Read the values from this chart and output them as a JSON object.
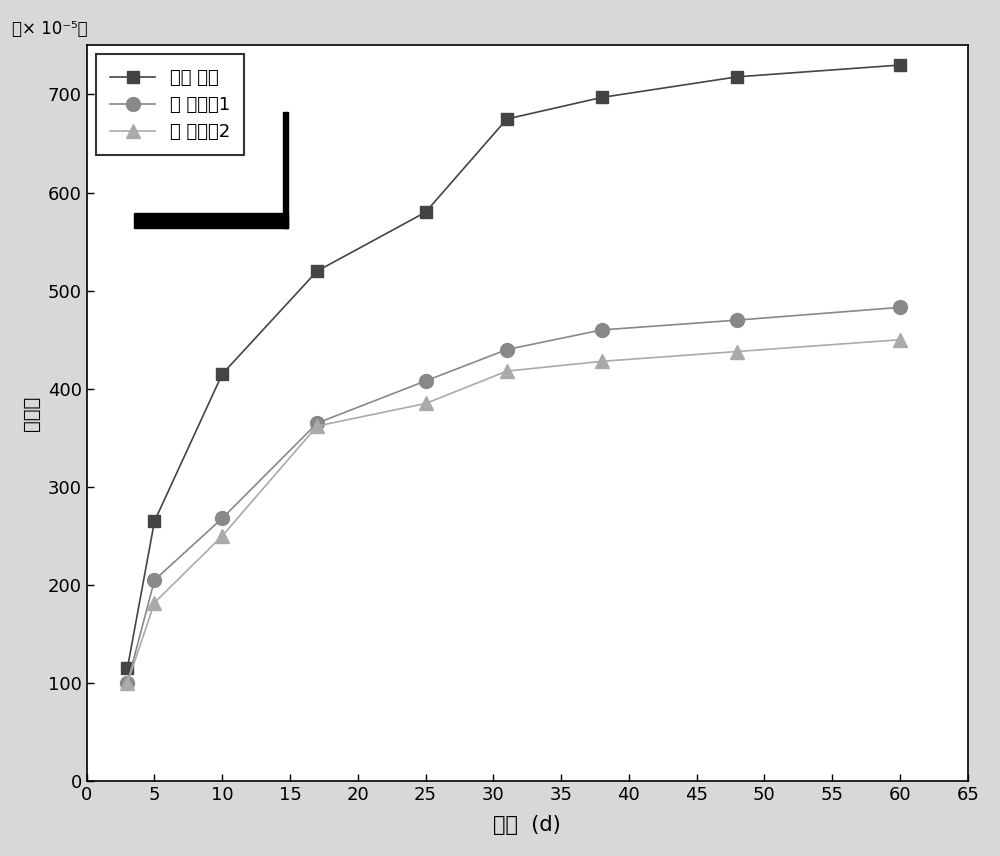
{
  "series": [
    {
      "label": "基准 砂浆",
      "x": [
        3,
        5,
        10,
        17,
        25,
        31,
        38,
        48,
        60
      ],
      "y": [
        115,
        265,
        415,
        520,
        580,
        675,
        697,
        718,
        730
      ],
      "color": "#444444",
      "marker": "s",
      "markersize": 9
    },
    {
      "label": "受 检胶砂1",
      "x": [
        3,
        5,
        10,
        17,
        25,
        31,
        38,
        48,
        60
      ],
      "y": [
        100,
        205,
        268,
        365,
        408,
        440,
        460,
        470,
        483
      ],
      "color": "#888888",
      "marker": "o",
      "markersize": 10
    },
    {
      "label": "受 检胶砂2",
      "x": [
        3,
        5,
        10,
        17,
        25,
        31,
        38,
        48,
        60
      ],
      "y": [
        100,
        182,
        250,
        362,
        385,
        418,
        428,
        438,
        450
      ],
      "color": "#aaaaaa",
      "marker": "^",
      "markersize": 10
    }
  ],
  "xlabel": "龄期  (d)",
  "ylabel_main": "干缩率",
  "ylabel_unit": "× 10⁻⁵",
  "xlim": [
    0,
    65
  ],
  "ylim": [
    0,
    750
  ],
  "xticks": [
    0,
    5,
    10,
    15,
    20,
    25,
    30,
    35,
    40,
    45,
    50,
    55,
    60,
    65
  ],
  "yticks": [
    0,
    100,
    200,
    300,
    400,
    500,
    600,
    700
  ],
  "line_width": 1.2,
  "background_color": "#ffffff",
  "fig_background": "#d8d8d8"
}
